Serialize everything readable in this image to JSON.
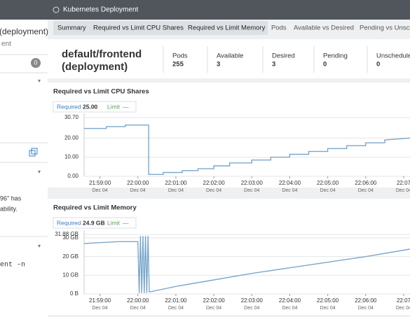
{
  "header": {
    "title": "Kubernetes Deployment"
  },
  "sidebar": {
    "name": "(deployment)",
    "subtitle": "ent",
    "badge": "0",
    "texts": [
      "96\" has",
      "ability."
    ],
    "command": "ent -n"
  },
  "tabs": [
    "Summary",
    "Required vs Limit CPU Shares",
    "Required vs Limit Memory",
    "Pods",
    "Available vs Desired",
    "Pending vs Unsche"
  ],
  "summary": {
    "title_line1": "default/frontend",
    "title_line2": "(deployment)",
    "stats": [
      {
        "label": "Pods",
        "value": "255"
      },
      {
        "label": "Available",
        "value": "3"
      },
      {
        "label": "Desired",
        "value": "3"
      },
      {
        "label": "Pending",
        "value": "0"
      },
      {
        "label": "Unschedule",
        "value": "0"
      }
    ]
  },
  "chart_data": [
    {
      "type": "line",
      "title": "Required vs Limit CPU Shares",
      "legend": {
        "required_label": "Required",
        "required_value": "25.00",
        "limit_label": "Limit",
        "limit_value": "—"
      },
      "x": [
        "21:58:35",
        "21:59:10",
        "21:59:10",
        "21:59:40",
        "21:59:40",
        "22:00:17",
        "22:00:17",
        "22:00:40",
        "22:00:40",
        "22:01:10",
        "22:01:10",
        "22:01:35",
        "22:01:35",
        "22:02:00",
        "22:02:00",
        "22:02:25",
        "22:02:25",
        "22:03:00",
        "22:03:00",
        "22:03:30",
        "22:03:30",
        "22:04:00",
        "22:04:00",
        "22:04:30",
        "22:04:30",
        "22:05:00",
        "22:05:00",
        "22:05:30",
        "22:05:30",
        "22:06:00",
        "22:06:00",
        "22:06:30",
        "22:06:30",
        "22:07:10"
      ],
      "series": [
        {
          "name": "Required",
          "color": "#7ba7cc",
          "values": [
            25,
            25,
            26,
            26,
            26.8,
            26.8,
            1,
            1,
            2,
            2,
            3,
            3,
            4,
            4,
            5.5,
            5.5,
            7,
            7,
            8.5,
            8.5,
            10,
            10,
            11.5,
            11.5,
            13,
            13,
            14.5,
            14.5,
            16,
            16,
            17.5,
            17.5,
            19,
            20
          ]
        }
      ],
      "xlim": [
        "21:58:35",
        "22:07:10"
      ],
      "xticks": [
        "21:59:00",
        "22:00:00",
        "22:01:00",
        "22:02:00",
        "22:03:00",
        "22:04:00",
        "22:05:00",
        "22:06:00",
        "22:07"
      ],
      "xtick_dates": [
        "Dec 04",
        "Dec 04",
        "Dec 04",
        "Dec 04",
        "Dec 04",
        "Dec 04",
        "Dec 04",
        "Dec 04",
        "Dec 04"
      ],
      "ylim": [
        0,
        30.7
      ],
      "yticks": [
        {
          "value": 0,
          "label": "0.00"
        },
        {
          "value": 10,
          "label": "10.00"
        },
        {
          "value": 20,
          "label": "20.00"
        },
        {
          "value": 30.7,
          "label": "30.70"
        }
      ],
      "grid": true
    },
    {
      "type": "line",
      "title": "Required vs Limit Memory",
      "legend": {
        "required_label": "Required",
        "required_value": "24.9 GB",
        "limit_label": "Limit",
        "limit_value": "—"
      },
      "x": [
        "21:58:35",
        "21:59:00",
        "21:59:30",
        "22:00:00",
        "22:00:02",
        "22:00:04",
        "22:00:06",
        "22:00:08",
        "22:00:10",
        "22:00:12",
        "22:00:14",
        "22:00:16",
        "22:00:18",
        "22:01:00",
        "22:02:00",
        "22:03:00",
        "22:04:00",
        "22:05:00",
        "22:06:00",
        "22:07:10"
      ],
      "series": [
        {
          "name": "Required",
          "color": "#7ba7cc",
          "values": [
            27,
            27.5,
            28,
            28,
            0.5,
            31,
            0.5,
            31,
            0.5,
            31,
            0.5,
            31,
            1,
            4,
            7.5,
            11,
            14,
            17,
            20,
            24
          ]
        }
      ],
      "xlim": [
        "21:58:35",
        "22:07:10"
      ],
      "xticks": [
        "21:59:00",
        "22:00:00",
        "22:01:00",
        "22:02:00",
        "22:03:00",
        "22:04:00",
        "22:05:00",
        "22:06:00",
        "22:07"
      ],
      "xtick_dates": [
        "Dec 04",
        "Dec 04",
        "Dec 04",
        "Dec 04",
        "Dec 04",
        "Dec 04",
        "Dec 04",
        "Dec 04",
        "Dec 04"
      ],
      "ylim": [
        0,
        31.88
      ],
      "yticks": [
        {
          "value": 0,
          "label": "0 B"
        },
        {
          "value": 10,
          "label": "10 GB"
        },
        {
          "value": 20,
          "label": "20 GB"
        },
        {
          "value": 30,
          "label": "30 GB"
        },
        {
          "value": 31.88,
          "label": "31.88 GB"
        }
      ],
      "grid": true
    }
  ]
}
